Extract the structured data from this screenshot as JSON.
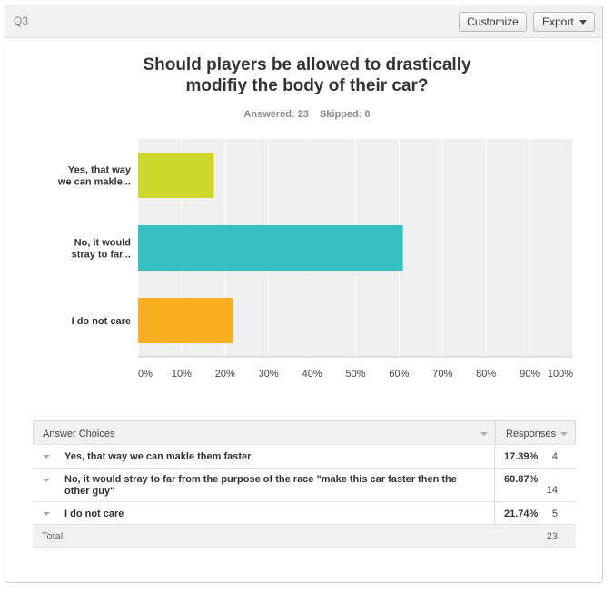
{
  "question": {
    "label": "Q3",
    "title_line1": "Should players be allowed to drastically",
    "title_line2": "modifiy the body of their car?",
    "answered_label": "Answered: 23",
    "skipped_label": "Skipped: 0"
  },
  "toolbar": {
    "customize_label": "Customize",
    "export_label": "Export"
  },
  "colors": {
    "bar1": "#CFD62B",
    "bar2": "#35BFC1",
    "bar3": "#F7AE1F",
    "plot_bg": "#EFEFEF",
    "grid": "#FFFFFF"
  },
  "chart_data": {
    "type": "bar",
    "orientation": "horizontal",
    "categories": [
      [
        "Yes, that way",
        "we can makle..."
      ],
      [
        "No, it would",
        "stray to far..."
      ],
      [
        "I do not care"
      ]
    ],
    "values": [
      17.39,
      60.87,
      21.74
    ],
    "xlim": [
      0,
      100
    ],
    "ticks": [
      0,
      10,
      20,
      30,
      40,
      50,
      60,
      70,
      80,
      90,
      100
    ],
    "tick_labels": [
      "0%",
      "10%",
      "20%",
      "30%",
      "40%",
      "50%",
      "60%",
      "70%",
      "80%",
      "90%",
      "100%"
    ],
    "grid": true
  },
  "table": {
    "col_answer": "Answer Choices",
    "col_responses": "Responses",
    "rows": [
      {
        "choice": "Yes, that way we can makle them faster",
        "percent": "17.39%",
        "count": "4"
      },
      {
        "choice": "No, it would stray to far from the purpose of the race \"make this car faster then the other guy\"",
        "percent": "60.87%",
        "count": "14"
      },
      {
        "choice": "I do not care",
        "percent": "21.74%",
        "count": "5"
      }
    ],
    "total_label": "Total",
    "total_value": "23"
  }
}
